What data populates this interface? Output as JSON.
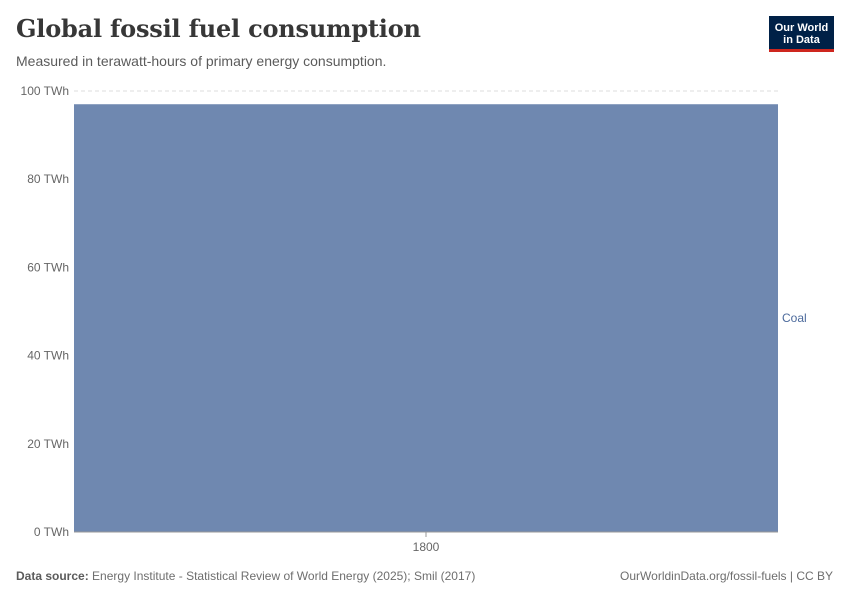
{
  "header": {
    "title": "Global fossil fuel consumption",
    "subtitle": "Measured in terawatt-hours of primary energy consumption."
  },
  "logo": {
    "line1": "Our World",
    "line2": "in Data"
  },
  "footer": {
    "source_label": "Data source:",
    "source_text": "Energy Institute - Statistical Review of World Energy (2025); Smil (2017)",
    "url_license": "OurWorldinData.org/fossil-fuels | CC BY"
  },
  "colors": {
    "coal": "#6f88b0",
    "grid": "#dddddd",
    "axis": "#999999"
  },
  "chart_data": {
    "type": "area",
    "title": "Global fossil fuel consumption",
    "subtitle": "Measured in terawatt-hours of primary energy consumption.",
    "x": [
      1800
    ],
    "x_tick_labels": [
      "1800"
    ],
    "y_tick_labels": [
      "0 TWh",
      "20 TWh",
      "40 TWh",
      "60 TWh",
      "80 TWh",
      "100 TWh"
    ],
    "y_ticks": [
      0,
      20,
      40,
      60,
      80,
      100
    ],
    "ylim": [
      0,
      100
    ],
    "y_unit": "TWh",
    "series": [
      {
        "name": "Coal",
        "values": [
          97
        ],
        "color": "#6f88b0"
      }
    ]
  }
}
